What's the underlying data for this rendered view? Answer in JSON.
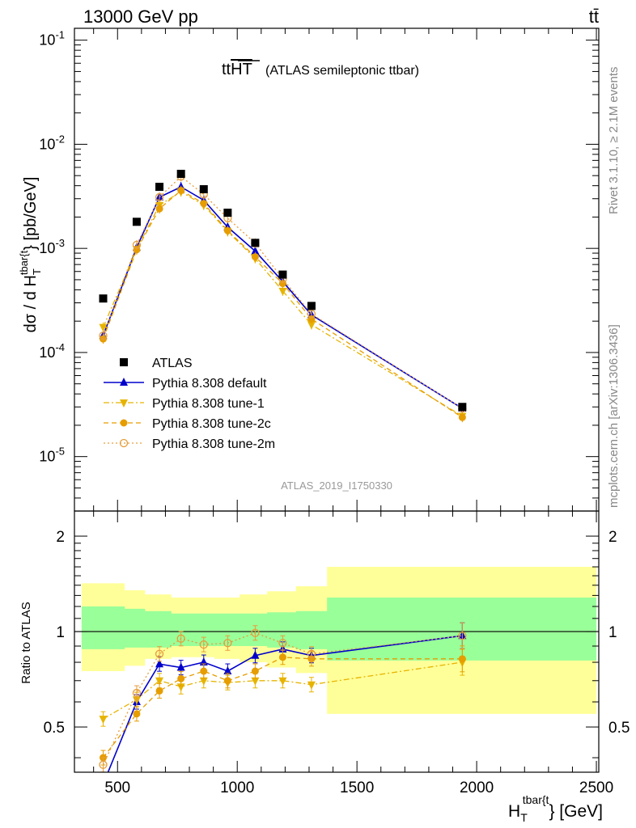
{
  "header": {
    "left": "13000 GeV pp",
    "right": "tt̄"
  },
  "side_labels": {
    "rivet": "Rivet 3.1.10, ≥ 2.1M events",
    "mcplots": "mcplots.cern.ch [arXiv:1306.3436]"
  },
  "title_main": "tt",
  "title_over": "HT",
  "title_rest": "(ATLAS semileptonic ttbar)",
  "analysis_id": "ATLAS_2019_I1750330",
  "axes": {
    "ylabel_main_pre": "dσ / d H",
    "ylabel_main_sub": "T",
    "ylabel_main_sup": "tbar{t",
    "ylabel_main_post": "} [pb/GeV]",
    "ylabel_ratio": "Ratio to ATLAS",
    "xlabel_pre": "H",
    "xlabel_sub": "T",
    "xlabel_sup": "tbar{t",
    "xlabel_post": "} [GeV]"
  },
  "colors": {
    "data": "#000000",
    "default": "#0000cc",
    "tune1": "#e6b400",
    "tune2c": "#e69d00",
    "tune2m": "#e69d3c",
    "band_inner": "#99ff99",
    "band_outer": "#ffff99"
  },
  "chart_data": [
    {
      "type": "scatter",
      "panel": "main",
      "xlim": [
        320,
        2510
      ],
      "ylim": [
        3e-06,
        0.13
      ],
      "yscale": "log",
      "xticklabels": [],
      "yticklabels": [
        "10^-5",
        "10^-4",
        "10^-3",
        "10^-2",
        "10^-1"
      ],
      "legend_position": "lower-left",
      "x": [
        440,
        580,
        675,
        765,
        860,
        960,
        1075,
        1190,
        1310,
        1940
      ],
      "series": [
        {
          "name": "ATLAS",
          "key": "data",
          "marker": "square",
          "style": "none",
          "values": [
            0.00033,
            0.0018,
            0.0039,
            0.0052,
            0.0037,
            0.0022,
            0.00113,
            0.00056,
            0.00028,
            3e-05
          ]
        },
        {
          "name": "Pythia 8.308 default",
          "key": "default",
          "marker": "triangle-up",
          "style": "solid",
          "values": [
            0.000145,
            0.00102,
            0.0031,
            0.0039,
            0.0029,
            0.0016,
            0.00094,
            0.00048,
            0.00023,
            2.9e-05
          ]
        },
        {
          "name": "Pythia 8.308 tune-1",
          "key": "tune1",
          "marker": "triangle-down",
          "style": "dashdot",
          "values": [
            0.000175,
            0.00098,
            0.0026,
            0.0035,
            0.0026,
            0.00145,
            0.0008,
            0.00039,
            0.000185,
            2.45e-05
          ]
        },
        {
          "name": "Pythia 8.308 tune-2c",
          "key": "tune2c",
          "marker": "circle",
          "style": "dashed",
          "values": [
            0.000135,
            0.00097,
            0.0024,
            0.0036,
            0.0027,
            0.00148,
            0.00083,
            0.00046,
            0.00021,
            2.38e-05
          ]
        },
        {
          "name": "Pythia 8.308 tune-2m",
          "key": "tune2m",
          "marker": "open-circle",
          "style": "dotted",
          "values": [
            0.000145,
            0.00108,
            0.0031,
            0.0049,
            0.0033,
            0.00195,
            0.00112,
            0.00051,
            0.000235,
            2.9e-05
          ]
        }
      ]
    },
    {
      "type": "scatter",
      "panel": "ratio",
      "xlim": [
        320,
        2510
      ],
      "ylim": [
        0.36,
        2.4
      ],
      "yscale": "log",
      "xticklabels": [
        "500",
        "1000",
        "1500",
        "2000",
        "2500"
      ],
      "yticklabels": [
        "0.5",
        "1",
        "2"
      ],
      "reference": 1,
      "bands": {
        "edges": [
          350,
          530,
          615,
          725,
          820,
          905,
          1010,
          1125,
          1245,
          1375,
          2500
        ],
        "inner_low": [
          0.88,
          0.89,
          0.89,
          0.9,
          0.9,
          0.9,
          0.9,
          0.89,
          0.88,
          0.81
        ],
        "inner_high": [
          1.2,
          1.18,
          1.16,
          1.14,
          1.14,
          1.14,
          1.14,
          1.15,
          1.16,
          1.28
        ],
        "outer_low": [
          0.75,
          0.78,
          0.82,
          0.83,
          0.83,
          0.82,
          0.8,
          0.77,
          0.74,
          0.55
        ],
        "outer_high": [
          1.42,
          1.35,
          1.31,
          1.28,
          1.28,
          1.28,
          1.31,
          1.34,
          1.39,
          1.6
        ]
      },
      "x": [
        440,
        580,
        675,
        765,
        860,
        960,
        1075,
        1190,
        1310,
        1940
      ],
      "series": [
        {
          "name": "Pythia 8.308 default",
          "key": "default",
          "marker": "triangle-up",
          "style": "solid",
          "values": [
            0.33,
            0.6,
            0.79,
            0.77,
            0.8,
            0.75,
            0.84,
            0.88,
            0.84,
            0.97
          ]
        },
        {
          "name": "Pythia 8.308 tune-1",
          "key": "tune1",
          "marker": "triangle-down",
          "style": "dashdot",
          "values": [
            0.53,
            0.61,
            0.7,
            0.67,
            0.7,
            0.69,
            0.7,
            0.7,
            0.68,
            0.8
          ]
        },
        {
          "name": "Pythia 8.308 tune-2c",
          "key": "tune2c",
          "marker": "circle",
          "style": "dashed",
          "values": [
            0.4,
            0.55,
            0.65,
            0.71,
            0.75,
            0.7,
            0.75,
            0.83,
            0.82,
            0.82
          ]
        },
        {
          "name": "Pythia 8.308 tune-2m",
          "key": "tune2m",
          "marker": "open-circle",
          "style": "dotted",
          "values": [
            0.38,
            0.64,
            0.85,
            0.95,
            0.91,
            0.92,
            0.99,
            0.92,
            0.85,
            0.97
          ]
        }
      ]
    }
  ]
}
